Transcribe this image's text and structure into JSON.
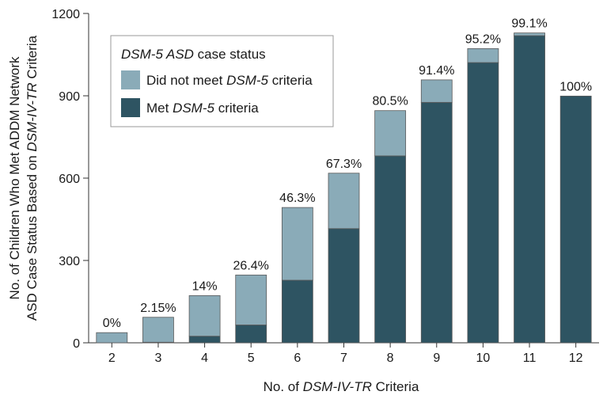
{
  "chart_data": {
    "type": "bar",
    "stacked": true,
    "categories": [
      "2",
      "3",
      "4",
      "5",
      "6",
      "7",
      "8",
      "9",
      "10",
      "11",
      "12"
    ],
    "series": [
      {
        "name": "Met DSM-5 criteria",
        "color": "#2e5462",
        "values": [
          0,
          2,
          24,
          65,
          228,
          416,
          681,
          876,
          1021,
          1119,
          899
        ]
      },
      {
        "name": "Did not meet DSM-5 criteria",
        "color": "#8aabb8",
        "values": [
          37,
          91,
          148,
          182,
          265,
          202,
          165,
          82,
          51,
          10,
          0
        ]
      }
    ],
    "percent_labels": [
      "0%",
      "2.15%",
      "14%",
      "26.4%",
      "46.3%",
      "67.3%",
      "80.5%",
      "91.4%",
      "95.2%",
      "99.1%",
      "100%"
    ],
    "ylim": [
      0,
      1200
    ],
    "yticks": [
      "0",
      "300",
      "600",
      "900",
      "1200"
    ],
    "xlabel": {
      "pre": "No. of ",
      "italic": "DSM-IV-TR",
      "post": " Criteria"
    },
    "ylabel_line1": "No. of Children Who Met ADDM Network",
    "ylabel_line2": {
      "pre": "ASD Case Status Based on ",
      "italic": "DSM-IV-TR",
      "post": " Criteria"
    },
    "legend": {
      "title": {
        "italic": "DSM-5 ASD",
        "post": " case status"
      },
      "entries": [
        {
          "pre": "Did not meet ",
          "italic": "DSM-5",
          "post": " criteria"
        },
        {
          "pre": "Met ",
          "italic": "DSM-5",
          "post": " criteria"
        }
      ],
      "placement": "top-left"
    }
  }
}
